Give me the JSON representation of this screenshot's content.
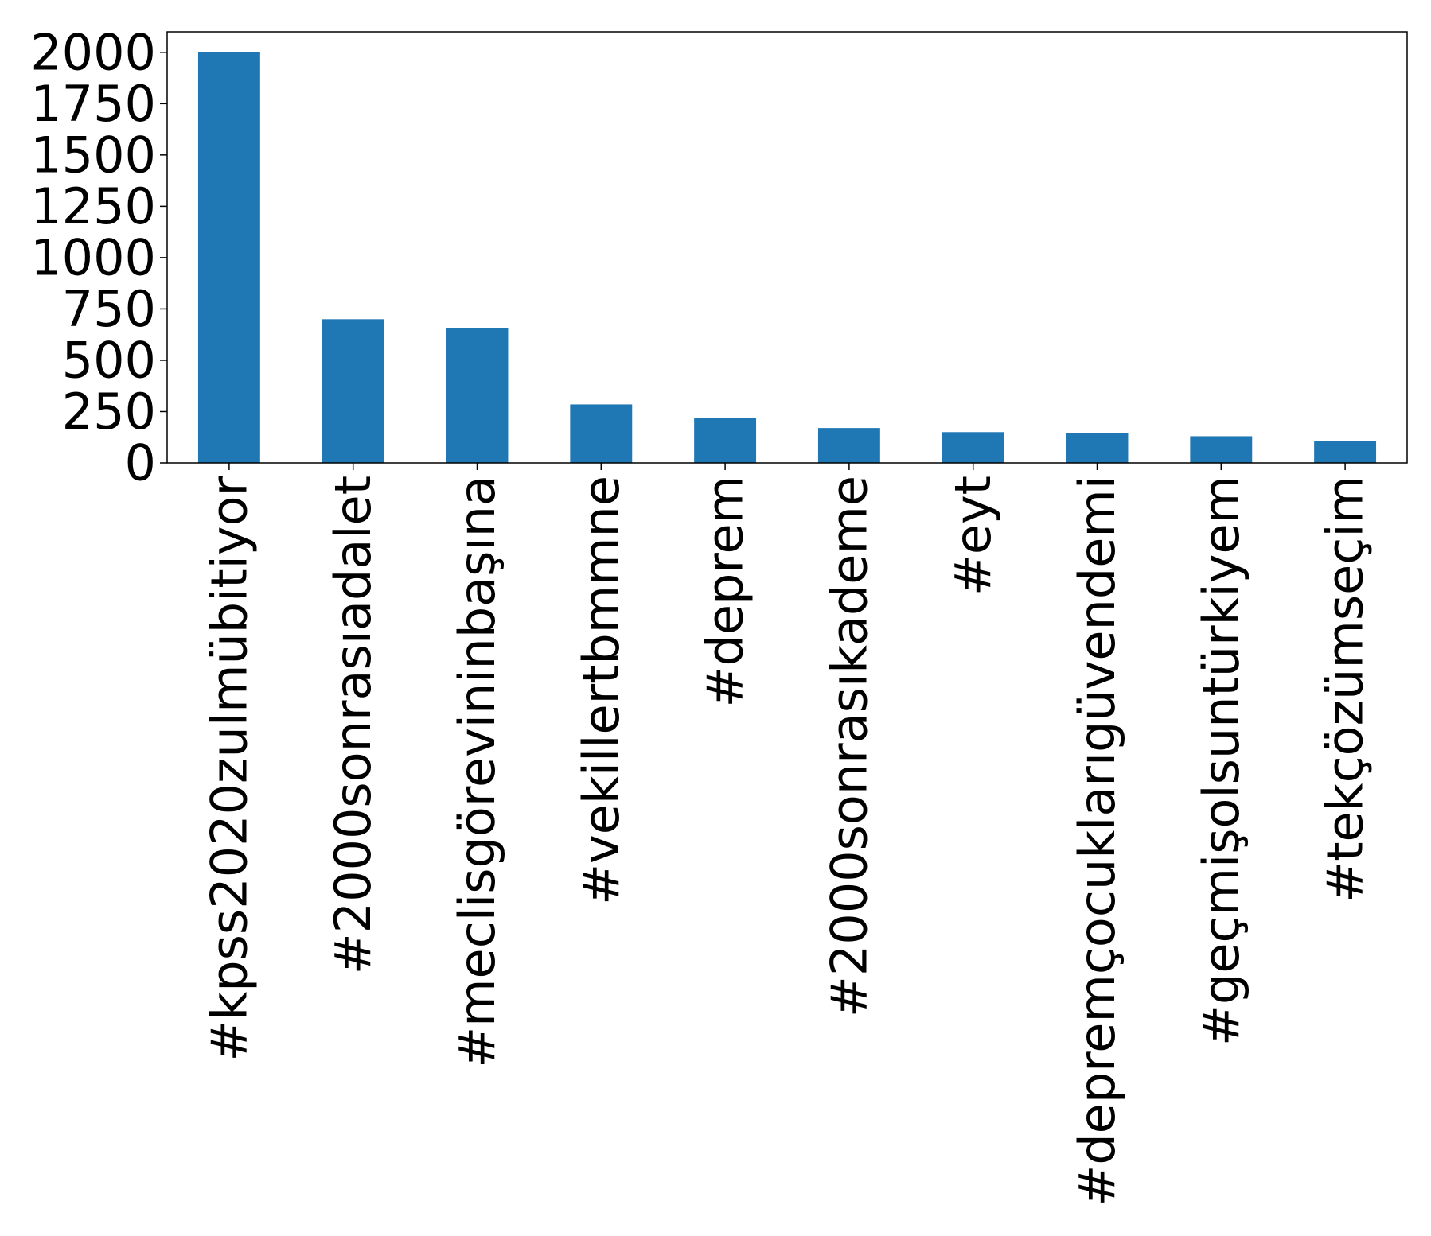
{
  "chart_data": {
    "type": "bar",
    "categories": [
      "#kpss2020zulmübitiyor",
      "#2000sonrasıadalet",
      "#meclisgörevininbaşına",
      "#vekillertbmmne",
      "#deprem",
      "#2000sonrasıkademe",
      "#eyt",
      "#depremçocuklarıgüvendemi",
      "#geçmişolsuntürkiyem",
      "#tekçözümseçim"
    ],
    "values": [
      2000,
      700,
      655,
      285,
      220,
      170,
      150,
      145,
      130,
      105
    ],
    "title": "",
    "xlabel": "",
    "ylabel": "",
    "ylim": [
      0,
      2100
    ],
    "yticks": [
      0,
      250,
      500,
      750,
      1000,
      1250,
      1500,
      1750,
      2000
    ],
    "grid": false,
    "legend": "none",
    "bar_color": "#1f77b4"
  }
}
